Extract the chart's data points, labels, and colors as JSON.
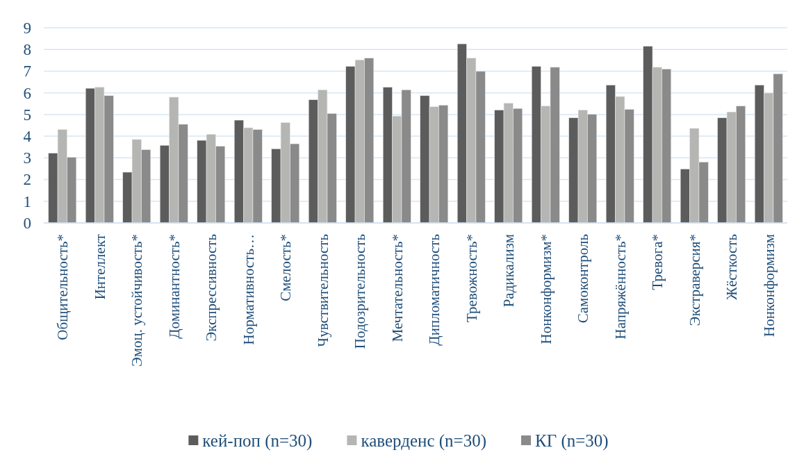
{
  "chart_data": {
    "type": "bar",
    "categories": [
      "Общительность*",
      "Интеллект",
      "Эмоц. устойчивость*",
      "Доминантность*",
      "Экспрессивность",
      "Нормативность…",
      "Смелость*",
      "Чувствительность",
      "Подозрительность",
      "Мечтательность*",
      "Дипломатичность",
      "Тревожность*",
      "Радикализм",
      "Нонконформизм*",
      "Самоконтроль",
      "Напряжённость*",
      "Тревога*",
      "Экстраверсия*",
      "Жёсткость",
      "Нонконформизм"
    ],
    "series": [
      {
        "name": "кей-поп (n=30)",
        "color": "#5c5c5c",
        "values": [
          3.22,
          6.21,
          2.34,
          3.58,
          3.81,
          4.74,
          3.42,
          5.68,
          7.22,
          6.26,
          5.87,
          8.26,
          5.21,
          7.22,
          4.85,
          6.36,
          8.15,
          2.49,
          4.85,
          6.36
        ]
      },
      {
        "name": "каверденс (n=30)",
        "color": "#b5b5b3",
        "values": [
          4.31,
          6.26,
          3.85,
          5.8,
          4.09,
          4.39,
          4.63,
          6.14,
          7.52,
          4.93,
          5.36,
          7.6,
          5.52,
          5.39,
          5.21,
          5.83,
          7.18,
          4.36,
          5.12,
          5.99
        ]
      },
      {
        "name": "КГ (n=30)",
        "color": "#8a8a8a",
        "values": [
          3.03,
          5.87,
          3.38,
          4.55,
          3.54,
          4.31,
          3.65,
          5.05,
          7.6,
          6.14,
          5.43,
          6.99,
          5.28,
          7.18,
          5.01,
          5.24,
          7.1,
          2.81,
          5.39,
          6.88
        ]
      }
    ],
    "ylim": [
      0,
      9
    ],
    "yticks": [
      0,
      1,
      2,
      3,
      4,
      5,
      6,
      7,
      8,
      9
    ],
    "grid": "y",
    "legend": "bottom"
  }
}
